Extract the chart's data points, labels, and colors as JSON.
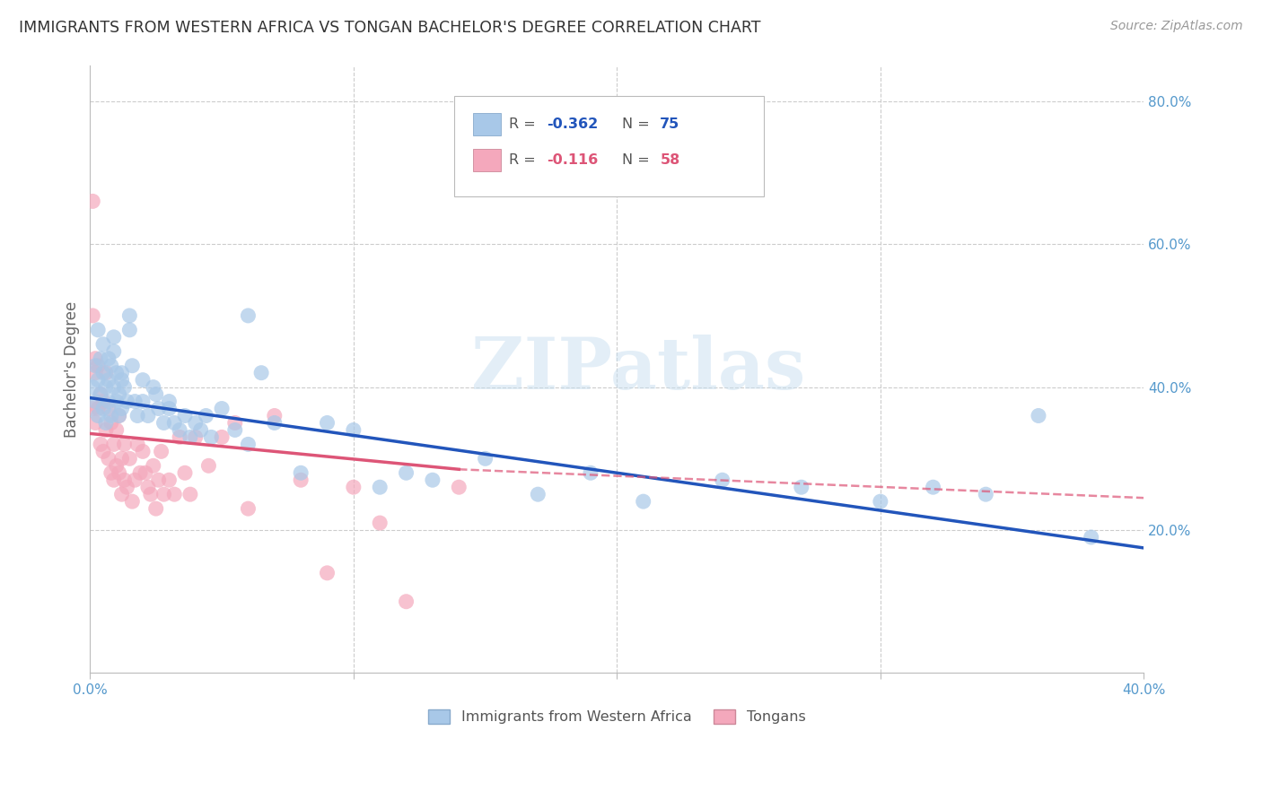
{
  "title": "IMMIGRANTS FROM WESTERN AFRICA VS TONGAN BACHELOR'S DEGREE CORRELATION CHART",
  "source": "Source: ZipAtlas.com",
  "ylabel": "Bachelor's Degree",
  "xlim": [
    0.0,
    0.4
  ],
  "ylim": [
    0.0,
    0.85
  ],
  "legend_label_blue": "Immigrants from Western Africa",
  "legend_label_pink": "Tongans",
  "blue_color": "#a8c8e8",
  "pink_color": "#f4a8bc",
  "blue_line_color": "#2255bb",
  "pink_line_color": "#dd5577",
  "axis_color": "#5599cc",
  "blue_x": [
    0.001,
    0.002,
    0.002,
    0.003,
    0.003,
    0.004,
    0.004,
    0.005,
    0.005,
    0.006,
    0.006,
    0.007,
    0.007,
    0.008,
    0.008,
    0.009,
    0.009,
    0.01,
    0.01,
    0.011,
    0.011,
    0.012,
    0.012,
    0.013,
    0.014,
    0.015,
    0.016,
    0.017,
    0.018,
    0.02,
    0.022,
    0.024,
    0.026,
    0.028,
    0.03,
    0.032,
    0.034,
    0.036,
    0.038,
    0.04,
    0.042,
    0.044,
    0.046,
    0.05,
    0.055,
    0.06,
    0.065,
    0.07,
    0.08,
    0.09,
    0.1,
    0.11,
    0.12,
    0.13,
    0.15,
    0.17,
    0.19,
    0.21,
    0.24,
    0.27,
    0.3,
    0.32,
    0.34,
    0.36,
    0.38,
    0.003,
    0.005,
    0.007,
    0.009,
    0.012,
    0.015,
    0.02,
    0.025,
    0.03,
    0.06
  ],
  "blue_y": [
    0.4,
    0.38,
    0.43,
    0.41,
    0.36,
    0.39,
    0.44,
    0.37,
    0.42,
    0.4,
    0.35,
    0.41,
    0.38,
    0.43,
    0.36,
    0.4,
    0.45,
    0.38,
    0.42,
    0.39,
    0.36,
    0.41,
    0.37,
    0.4,
    0.38,
    0.5,
    0.43,
    0.38,
    0.36,
    0.38,
    0.36,
    0.4,
    0.37,
    0.35,
    0.37,
    0.35,
    0.34,
    0.36,
    0.33,
    0.35,
    0.34,
    0.36,
    0.33,
    0.37,
    0.34,
    0.32,
    0.42,
    0.35,
    0.28,
    0.35,
    0.34,
    0.26,
    0.28,
    0.27,
    0.3,
    0.25,
    0.28,
    0.24,
    0.27,
    0.26,
    0.24,
    0.26,
    0.25,
    0.36,
    0.19,
    0.48,
    0.46,
    0.44,
    0.47,
    0.42,
    0.48,
    0.41,
    0.39,
    0.38,
    0.5
  ],
  "pink_x": [
    0.001,
    0.001,
    0.002,
    0.002,
    0.003,
    0.003,
    0.004,
    0.004,
    0.005,
    0.005,
    0.006,
    0.006,
    0.007,
    0.007,
    0.008,
    0.008,
    0.009,
    0.009,
    0.01,
    0.01,
    0.011,
    0.011,
    0.012,
    0.012,
    0.013,
    0.013,
    0.014,
    0.015,
    0.016,
    0.017,
    0.018,
    0.019,
    0.02,
    0.021,
    0.022,
    0.023,
    0.024,
    0.025,
    0.026,
    0.027,
    0.028,
    0.03,
    0.032,
    0.034,
    0.036,
    0.038,
    0.04,
    0.045,
    0.05,
    0.055,
    0.06,
    0.07,
    0.08,
    0.09,
    0.1,
    0.11,
    0.12,
    0.14,
    0.001,
    0.002
  ],
  "pink_y": [
    0.66,
    0.37,
    0.44,
    0.35,
    0.43,
    0.37,
    0.39,
    0.32,
    0.38,
    0.31,
    0.42,
    0.34,
    0.37,
    0.3,
    0.35,
    0.28,
    0.32,
    0.27,
    0.34,
    0.29,
    0.36,
    0.28,
    0.3,
    0.25,
    0.32,
    0.27,
    0.26,
    0.3,
    0.24,
    0.27,
    0.32,
    0.28,
    0.31,
    0.28,
    0.26,
    0.25,
    0.29,
    0.23,
    0.27,
    0.31,
    0.25,
    0.27,
    0.25,
    0.33,
    0.28,
    0.25,
    0.33,
    0.29,
    0.33,
    0.35,
    0.23,
    0.36,
    0.27,
    0.14,
    0.26,
    0.21,
    0.1,
    0.26,
    0.5,
    0.42
  ]
}
